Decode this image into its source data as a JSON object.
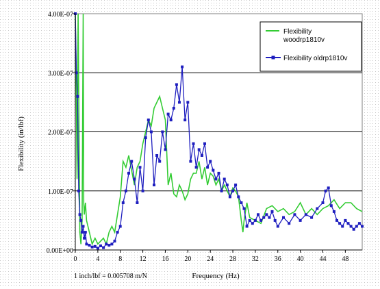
{
  "chart_data": {
    "type": "line",
    "title": "",
    "xlabel": "Frequency (Hz)",
    "ylabel": "Flexibility (in/lbf)",
    "note": "1 inch/lbf = 0.005708 m/N",
    "xlim": [
      0,
      51
    ],
    "ylim": [
      0,
      4e-07
    ],
    "x_ticks": [
      0,
      4,
      8,
      12,
      16,
      20,
      24,
      28,
      32,
      36,
      40,
      44,
      48
    ],
    "x_tick_labels": [
      "0",
      "4",
      "8",
      "12",
      "16",
      "20",
      "24",
      "28",
      "32",
      "36",
      "40",
      "44",
      "48"
    ],
    "y_ticks": [
      0,
      1e-07,
      2e-07,
      3e-07,
      4e-07
    ],
    "y_tick_labels": [
      "0.00E+00",
      "1.00E-07",
      "2.00E-07",
      "3.00E-07",
      "4.00E-07"
    ],
    "grid": "horizontal",
    "legend_position": "top-right",
    "legend": [
      {
        "label_line1": "Flexibility",
        "label_line2": "woodrp1810v"
      },
      {
        "label_line1": "Flexibility oldrp1810v",
        "label_line2": ""
      }
    ],
    "series": [
      {
        "name": "Flexibility woodrp1810v",
        "color": "#33cc33",
        "marker": "none",
        "x": [
          0.0,
          0.15,
          0.3,
          0.5,
          0.8,
          1.0,
          1.2,
          1.4,
          1.5,
          1.6,
          1.8,
          2.0,
          2.5,
          3.0,
          3.5,
          4.0,
          4.5,
          5.0,
          5.5,
          6.0,
          6.5,
          7.0,
          7.5,
          8.0,
          8.5,
          9.0,
          9.5,
          10.0,
          10.5,
          11.0,
          11.5,
          12.0,
          12.5,
          13.0,
          13.5,
          14.0,
          14.5,
          15.0,
          15.5,
          16.0,
          16.5,
          17.0,
          17.5,
          18.0,
          18.5,
          19.0,
          19.5,
          20.0,
          20.5,
          21.0,
          21.5,
          22.0,
          22.5,
          23.0,
          23.5,
          24.0,
          24.5,
          25.0,
          25.5,
          26.0,
          26.5,
          27.0,
          27.5,
          28.0,
          28.5,
          29.0,
          29.5,
          29.8,
          30.0,
          30.5,
          31.0,
          32.0,
          33.0,
          34.0,
          35.0,
          36.0,
          37.0,
          38.0,
          39.0,
          40.0,
          41.0,
          42.0,
          43.0,
          44.0,
          45.0,
          46.0,
          47.0,
          48.0,
          49.0,
          50.0,
          51.0
        ],
        "y": [
          4e-07,
          3e-07,
          1.2e-07,
          4e-07,
          3e-08,
          1e-08,
          5e-08,
          4e-07,
          8e-08,
          6e-08,
          8e-08,
          5e-08,
          3e-08,
          1e-08,
          2e-08,
          1e-08,
          1.5e-08,
          2e-08,
          1e-08,
          3e-08,
          4e-08,
          3e-08,
          6e-08,
          9e-08,
          1.5e-07,
          1.4e-07,
          1.6e-07,
          1.35e-07,
          1.1e-07,
          1.4e-07,
          1.5e-07,
          1.8e-07,
          2e-07,
          2.2e-07,
          2.1e-07,
          2.4e-07,
          2.5e-07,
          2.6e-07,
          2.4e-07,
          2.2e-07,
          1.1e-07,
          1.3e-07,
          9.5e-08,
          9e-08,
          1.1e-07,
          1e-07,
          8.5e-08,
          9.5e-08,
          1.2e-07,
          1.3e-07,
          1.3e-07,
          1.5e-07,
          1.2e-07,
          1.4e-07,
          1.1e-07,
          1.3e-07,
          1.25e-07,
          1.1e-07,
          1.2e-07,
          1e-07,
          1.1e-07,
          1e-07,
          9e-08,
          1.05e-07,
          1e-07,
          9e-08,
          5e-08,
          3e-08,
          5e-08,
          8e-08,
          5.5e-08,
          5e-08,
          4.5e-08,
          7e-08,
          7.5e-08,
          6.5e-08,
          7e-08,
          6e-08,
          6.5e-08,
          8e-08,
          6e-08,
          7e-08,
          6e-08,
          7e-08,
          7.5e-08,
          8.5e-08,
          7e-08,
          8e-08,
          8e-08,
          7e-08,
          6.5e-08
        ]
      },
      {
        "name": "Flexibility oldrp1810v",
        "color": "#1f1fbf",
        "marker": "square",
        "x": [
          0.0,
          0.2,
          0.4,
          0.6,
          0.8,
          1.0,
          1.2,
          1.4,
          1.6,
          1.8,
          2.0,
          2.5,
          3.0,
          3.5,
          4.0,
          4.5,
          5.0,
          5.5,
          6.0,
          6.5,
          7.0,
          7.5,
          8.0,
          8.5,
          9.0,
          9.5,
          10.0,
          10.5,
          11.0,
          11.5,
          12.0,
          12.5,
          13.0,
          13.5,
          14.0,
          14.5,
          15.0,
          15.5,
          16.0,
          16.5,
          17.0,
          17.5,
          18.0,
          18.5,
          19.0,
          19.5,
          20.0,
          20.5,
          21.0,
          21.5,
          22.0,
          22.5,
          23.0,
          23.5,
          24.0,
          24.5,
          25.0,
          25.5,
          26.0,
          26.5,
          27.0,
          27.5,
          28.0,
          28.5,
          29.0,
          29.5,
          30.0,
          30.5,
          31.0,
          31.5,
          32.0,
          32.5,
          33.0,
          33.5,
          34.0,
          34.5,
          35.0,
          35.5,
          36.0,
          37.0,
          38.0,
          39.0,
          40.0,
          41.0,
          42.0,
          43.0,
          44.0,
          44.5,
          45.0,
          45.5,
          46.0,
          46.5,
          47.0,
          47.5,
          48.0,
          48.5,
          49.0,
          49.5,
          50.0,
          50.5,
          51.0
        ],
        "y": [
          4e-07,
          3e-07,
          2.6e-07,
          1e-07,
          6e-08,
          5e-08,
          3e-08,
          4e-08,
          2e-08,
          3e-08,
          1e-08,
          8e-09,
          5e-09,
          6e-09,
          3e-09,
          7e-09,
          4e-09,
          1e-08,
          8e-09,
          1e-08,
          1.5e-08,
          3e-08,
          4e-08,
          8e-08,
          1e-07,
          1.3e-07,
          1.5e-07,
          1.2e-07,
          8e-08,
          1.4e-07,
          1e-07,
          1.9e-07,
          2.2e-07,
          2e-07,
          1.1e-07,
          1.6e-07,
          1.5e-07,
          2e-07,
          1.7e-07,
          2.3e-07,
          2.2e-07,
          2.4e-07,
          2.8e-07,
          2.5e-07,
          3.1e-07,
          2.2e-07,
          2.5e-07,
          1.5e-07,
          1.8e-07,
          1.4e-07,
          1.7e-07,
          1.6e-07,
          1.8e-07,
          1.4e-07,
          1.5e-07,
          1.35e-07,
          1.2e-07,
          1.3e-07,
          1e-07,
          1.2e-07,
          1.1e-07,
          9e-08,
          1e-07,
          1.1e-07,
          9e-08,
          8e-08,
          7e-08,
          4e-08,
          5e-08,
          4.5e-08,
          5e-08,
          6e-08,
          5e-08,
          5.5e-08,
          6e-08,
          5.5e-08,
          6.5e-08,
          5e-08,
          4e-08,
          5.5e-08,
          4.5e-08,
          6e-08,
          5e-08,
          6e-08,
          5.5e-08,
          7e-08,
          8e-08,
          1e-07,
          1.05e-07,
          7.5e-08,
          6.5e-08,
          5e-08,
          4.5e-08,
          4e-08,
          5e-08,
          4.5e-08,
          4e-08,
          3.5e-08,
          4e-08,
          4.5e-08,
          4e-08
        ]
      }
    ]
  }
}
